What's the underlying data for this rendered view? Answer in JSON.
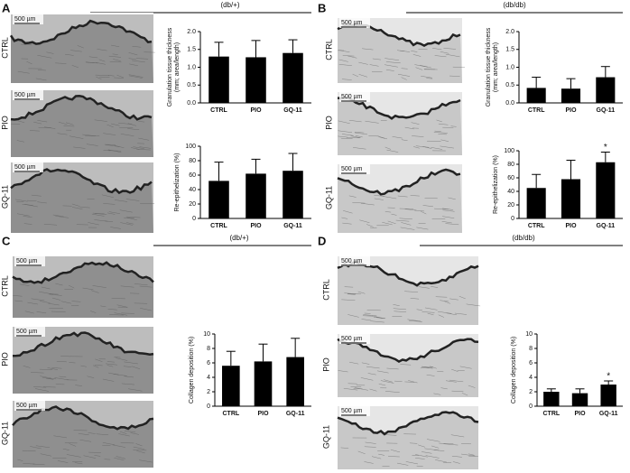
{
  "panels": [
    {
      "letter": "A",
      "group": "(db/+)",
      "rows": [
        "CTRL",
        "PIO",
        "GQ-11"
      ],
      "scale_bar": "500 µm"
    },
    {
      "letter": "B",
      "group": "(db/db)",
      "rows": [
        "CTRL",
        "PIO",
        "GQ-11"
      ],
      "scale_bar": "500 µm"
    },
    {
      "letter": "C",
      "group": "(db/+)",
      "rows": [
        "CTRL",
        "PIO",
        "GQ-11"
      ],
      "scale_bar": "500 µm"
    },
    {
      "letter": "D",
      "group": "(db/db)",
      "rows": [
        "CTRL",
        "PIO",
        "GQ-11"
      ],
      "scale_bar": "500 µm"
    }
  ],
  "chart_data": [
    {
      "type": "bar",
      "ylabel": [
        "Granulation tissue thickness",
        "(mm; area/length)"
      ],
      "categories": [
        "CTRL",
        "PIO",
        "GQ-11"
      ],
      "values": [
        1.3,
        1.28,
        1.4
      ],
      "errors": [
        0.4,
        0.47,
        0.37
      ],
      "color": "#000000",
      "ylim": [
        0,
        2
      ],
      "yticks": [
        {
          "value": 0,
          "label": "0.0"
        },
        0.5,
        {
          "value": 1,
          "label": "1.0"
        },
        1.5,
        {
          "value": 2,
          "label": "2.0"
        }
      ]
    },
    {
      "type": "bar",
      "ylabel": [
        "Re-epithelization (%)"
      ],
      "categories": [
        "CTRL",
        "PIO",
        "GQ-11"
      ],
      "values": [
        52,
        62,
        66
      ],
      "errors": [
        26,
        20,
        24
      ],
      "color": "#000000",
      "ylim": [
        0,
        100
      ],
      "yticks": [
        0,
        20,
        40,
        60,
        80,
        100
      ]
    },
    {
      "type": "bar",
      "ylabel": [
        "Granulation tissue thickness",
        "(mm; area/length)"
      ],
      "categories": [
        "CTRL",
        "PIO",
        "GQ-11"
      ],
      "values": [
        0.42,
        0.4,
        0.72
      ],
      "errors": [
        0.3,
        0.28,
        0.3
      ],
      "color": "#000000",
      "ylim": [
        0,
        2
      ],
      "yticks": [
        {
          "value": 0,
          "label": "0.0"
        },
        0.5,
        {
          "value": 1,
          "label": "1.0"
        },
        1.5,
        {
          "value": 2,
          "label": "2.0"
        }
      ]
    },
    {
      "type": "bar",
      "ylabel": [
        "Re-epithelization (%)"
      ],
      "categories": [
        "CTRL",
        "PIO",
        "GQ-11"
      ],
      "values": [
        45,
        58,
        83
      ],
      "errors": [
        20,
        28,
        15
      ],
      "value_annotations": [
        null,
        null,
        "*"
      ],
      "color": "#000000",
      "ylim": [
        0,
        100
      ],
      "yticks": [
        0,
        20,
        40,
        60,
        80,
        100
      ]
    },
    {
      "type": "bar",
      "ylabel": [
        "Collagen deposition (%)"
      ],
      "categories": [
        "CTRL",
        "PIO",
        "GQ-11"
      ],
      "values": [
        5.6,
        6.2,
        6.8
      ],
      "errors": [
        2,
        2.4,
        2.6
      ],
      "color": "#000000",
      "ylim": [
        0,
        10
      ],
      "yticks": [
        0,
        2,
        4,
        6,
        8,
        10
      ]
    },
    {
      "type": "bar",
      "ylabel": [
        "Collagen deposition (%)"
      ],
      "categories": [
        "CTRL",
        "PIO",
        "GQ-11"
      ],
      "values": [
        2.0,
        1.8,
        3.0
      ],
      "errors": [
        0.4,
        0.6,
        0.5
      ],
      "value_annotations": [
        null,
        null,
        "*"
      ],
      "color": "#000000",
      "ylim": [
        0,
        10
      ],
      "yticks": [
        0,
        2,
        4,
        6,
        8,
        10
      ]
    }
  ]
}
